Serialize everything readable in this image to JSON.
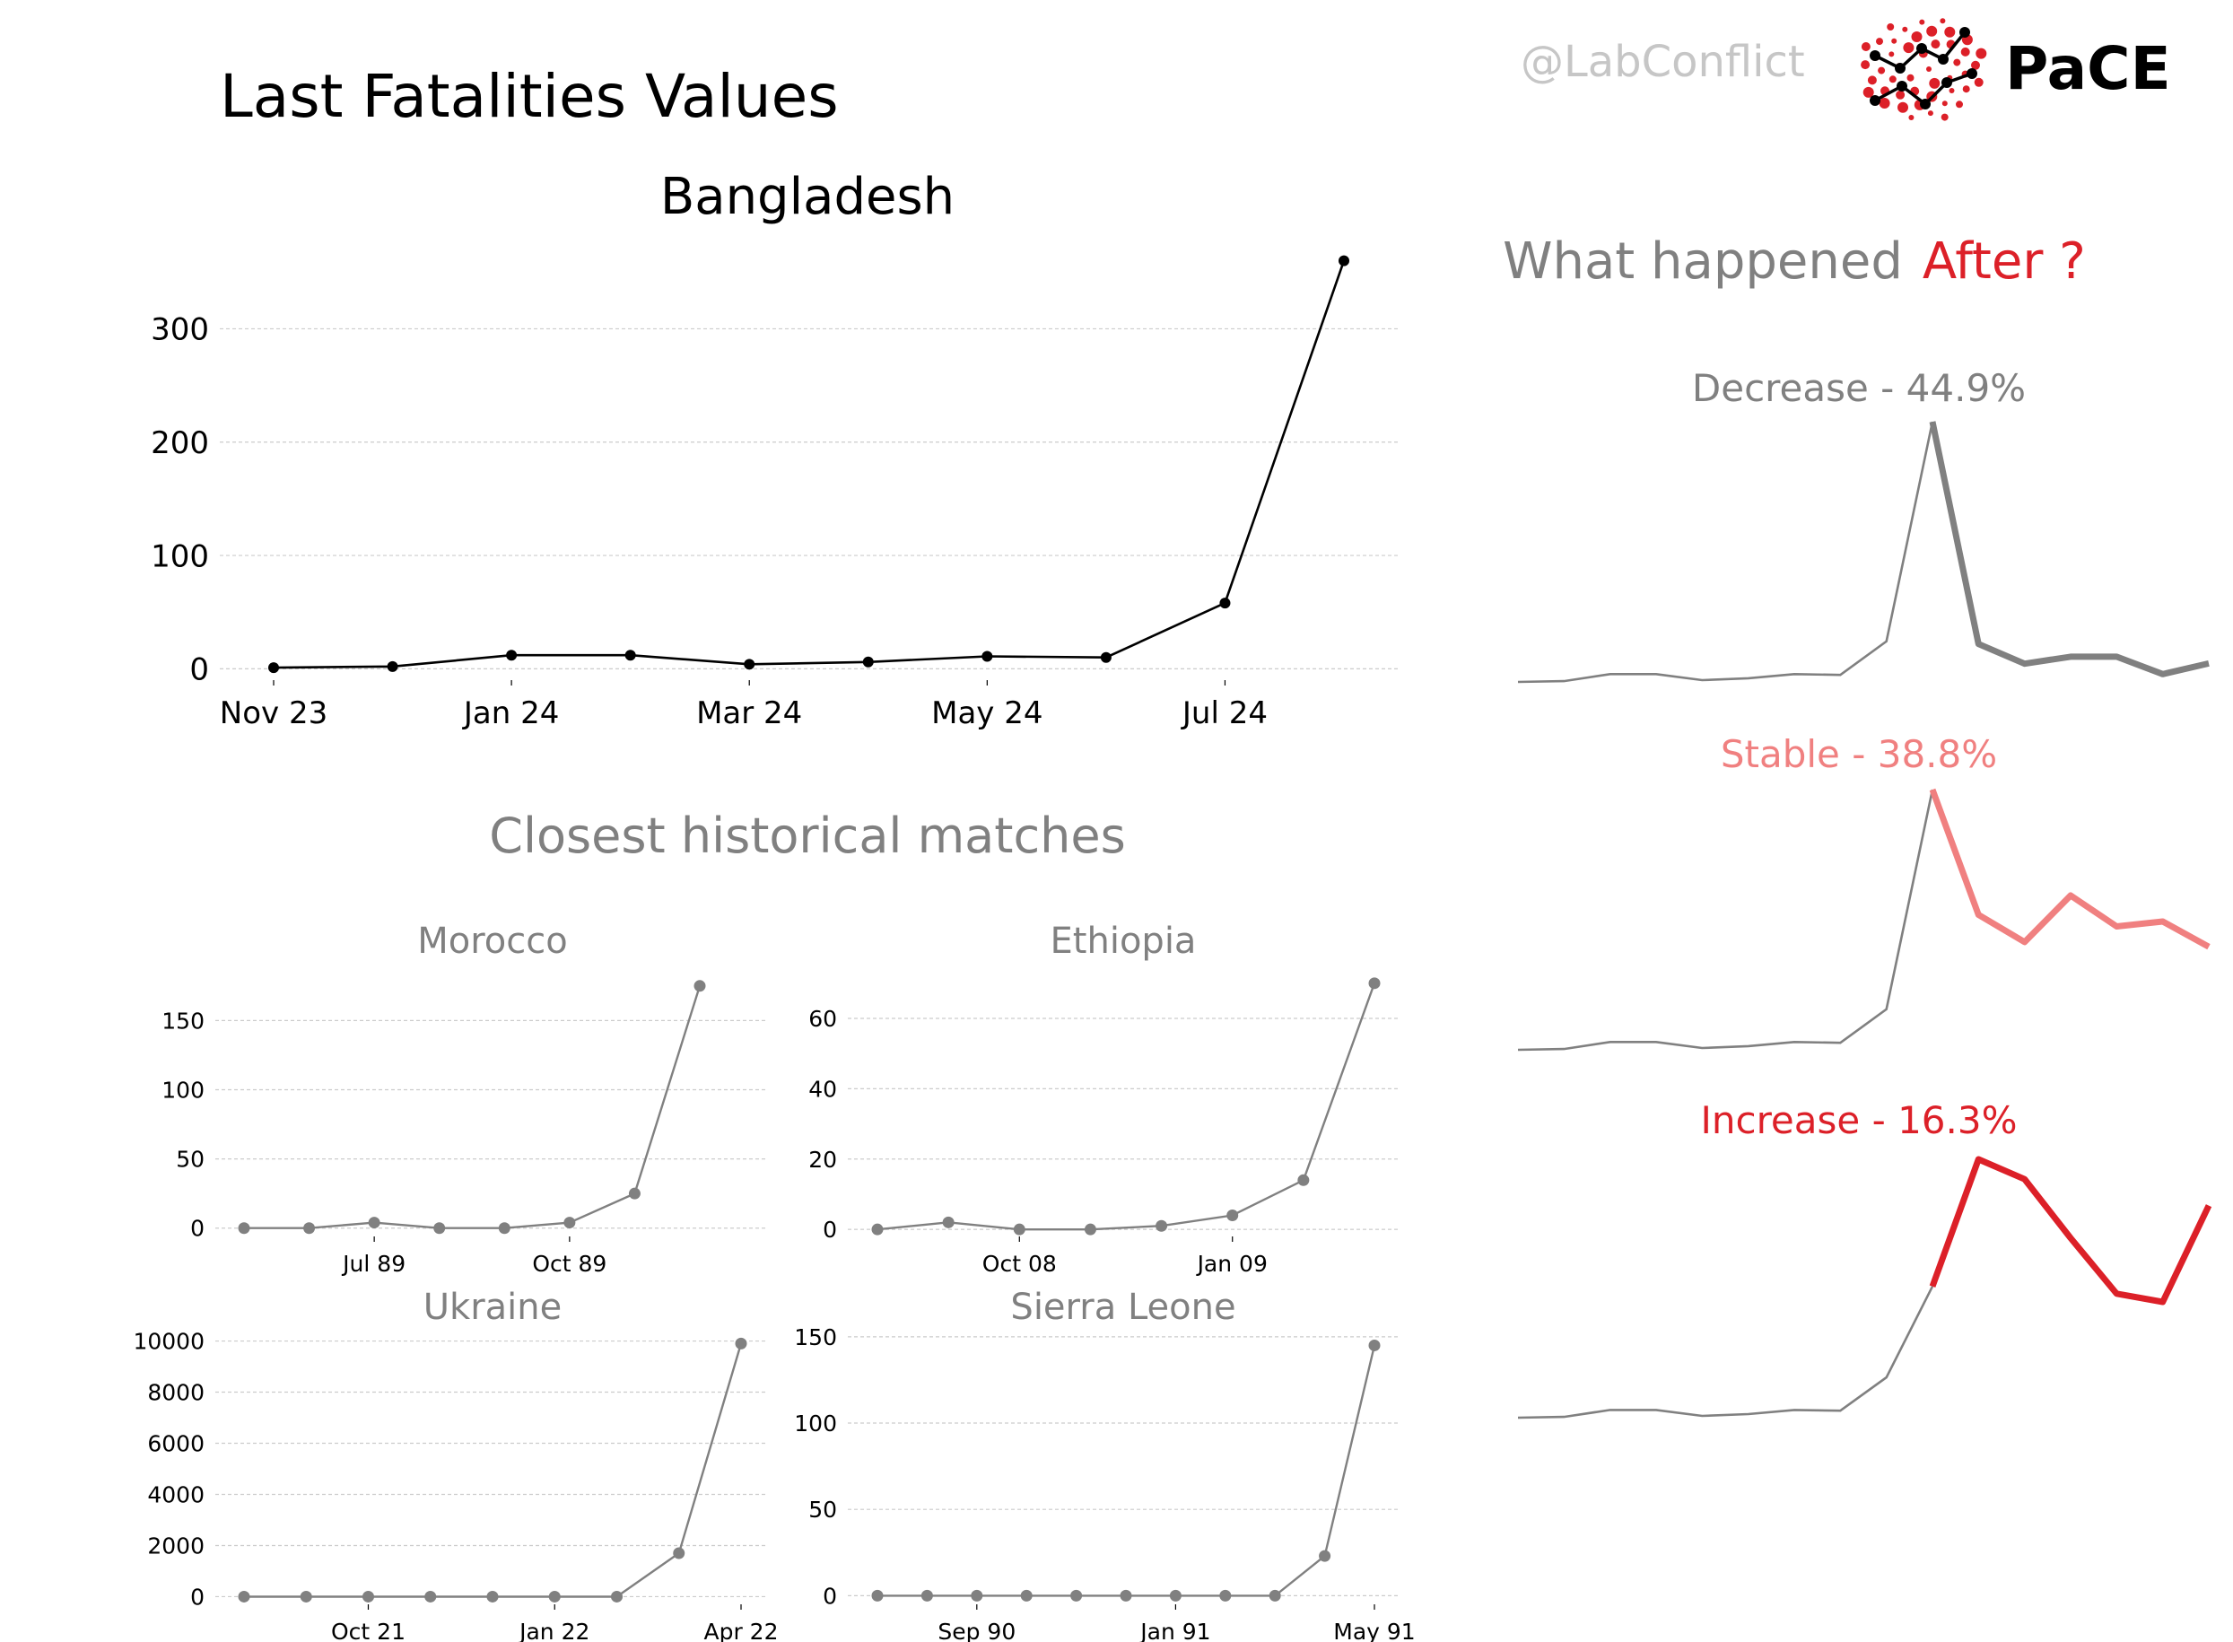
{
  "header": {
    "title": "Last Fatalities Values",
    "handle": "@LabConflict",
    "logo_text": "PaCE"
  },
  "colors": {
    "main_line": "#000000",
    "history_line": "#808080",
    "decrease": "#808080",
    "stable": "#f08080",
    "increase": "#dc2028",
    "grid": "#cccccc",
    "title_gray": "#808080"
  },
  "main_chart": {
    "chart_data": {
      "type": "line",
      "title": "Bangladesh",
      "x": [
        "Nov 23",
        "Dec 23",
        "Jan 24",
        "Feb 24",
        "Mar 24",
        "Apr 24",
        "May 24",
        "Jun 24",
        "Jul 24",
        "Aug 24"
      ],
      "values": [
        1,
        2,
        12,
        12,
        4,
        6,
        11,
        10,
        58,
        360
      ],
      "xticks": [
        "Nov 23",
        "Jan 24",
        "Mar 24",
        "May 24",
        "Jul 24"
      ],
      "yticks": [
        0,
        100,
        200,
        300
      ],
      "ylim": [
        -10,
        370
      ],
      "grid": "horizontal"
    }
  },
  "history": {
    "title": "Closest historical matches",
    "charts": [
      {
        "chart_data": {
          "type": "line",
          "title": "Morocco",
          "x": [
            "May 89",
            "Jun 89",
            "Jul 89",
            "Aug 89",
            "Sep 89",
            "Oct 89",
            "Nov 89",
            "Dec 89"
          ],
          "values": [
            0,
            0,
            4,
            0,
            0,
            4,
            25,
            175
          ],
          "xticks": [
            {
              "label": "Jul 89",
              "index": 2
            },
            {
              "label": "Oct 89",
              "index": 5
            }
          ],
          "yticks": [
            0,
            50,
            100,
            150
          ],
          "ylim": [
            -6,
            182
          ]
        }
      },
      {
        "chart_data": {
          "type": "line",
          "title": "Ethiopia",
          "x": [
            "Aug 08",
            "Sep 08",
            "Oct 08",
            "Nov 08",
            "Dec 08",
            "Jan 09",
            "Feb 09",
            "Mar 09"
          ],
          "values": [
            0,
            2,
            0,
            0,
            1,
            4,
            14,
            70
          ],
          "xticks": [
            {
              "label": "Oct 08",
              "index": 2
            },
            {
              "label": "Jan 09",
              "index": 5
            }
          ],
          "yticks": [
            0,
            20,
            40,
            60
          ],
          "ylim": [
            -2,
            72
          ]
        }
      },
      {
        "chart_data": {
          "type": "line",
          "title": "Ukraine",
          "x": [
            "Aug 21",
            "Sep 21",
            "Oct 21",
            "Nov 21",
            "Dec 21",
            "Jan 22",
            "Feb 22",
            "Mar 22",
            "Apr 22"
          ],
          "values": [
            0,
            0,
            0,
            0,
            0,
            0,
            0,
            1700,
            9900
          ],
          "xticks": [
            {
              "label": "Oct 21",
              "index": 2
            },
            {
              "label": "Jan 22",
              "index": 5
            },
            {
              "label": "Apr 22",
              "index": 8
            }
          ],
          "yticks": [
            0,
            2000,
            4000,
            6000,
            8000,
            10000
          ],
          "ylim": [
            -300,
            10300
          ]
        }
      },
      {
        "chart_data": {
          "type": "line",
          "title": "Sierra Leone",
          "x": [
            "Jul 90",
            "Aug 90",
            "Sep 90",
            "Oct 90",
            "Nov 90",
            "Dec 90",
            "Jan 91",
            "Feb 91",
            "Mar 91",
            "Apr 91",
            "May 91"
          ],
          "values": [
            0,
            0,
            0,
            0,
            0,
            0,
            0,
            0,
            0,
            23,
            145
          ],
          "xticks": [
            {
              "label": "Sep 90",
              "index": 2
            },
            {
              "label": "Jan 91",
              "index": 6
            },
            {
              "label": "May 91",
              "index": 10
            }
          ],
          "yticks": [
            0,
            50,
            100,
            150
          ],
          "ylim": [
            -5,
            152
          ]
        }
      }
    ]
  },
  "outcomes": {
    "title_prefix": "What happened",
    "title_suffix": "After ?",
    "scenarios": [
      {
        "label": "Decrease - 44.9%",
        "color": "#808080",
        "chart_data": {
          "type": "line",
          "history": [
            0.0,
            0.003,
            0.03,
            0.03,
            0.007,
            0.014,
            0.03,
            0.027,
            0.156,
            1.0
          ],
          "forecast": [
            1.0,
            0.146,
            0.07,
            0.097,
            0.097,
            0.03,
            0.071
          ]
        }
      },
      {
        "label": "Stable - 38.8%",
        "color": "#f08080",
        "chart_data": {
          "type": "line",
          "history": [
            0.0,
            0.003,
            0.03,
            0.03,
            0.007,
            0.014,
            0.03,
            0.027,
            0.156,
            1.0
          ],
          "forecast": [
            1.0,
            0.519,
            0.414,
            0.593,
            0.474,
            0.493,
            0.396
          ]
        }
      },
      {
        "label": "Increase - 16.3%",
        "color": "#dc2028",
        "chart_data": {
          "type": "line",
          "history": [
            0.0,
            0.003,
            0.03,
            0.03,
            0.007,
            0.014,
            0.03,
            0.027,
            0.156,
            0.508
          ],
          "forecast": [
            0.508,
            1.0,
            0.923,
            0.695,
            0.48,
            0.448,
            0.821
          ]
        }
      }
    ]
  }
}
